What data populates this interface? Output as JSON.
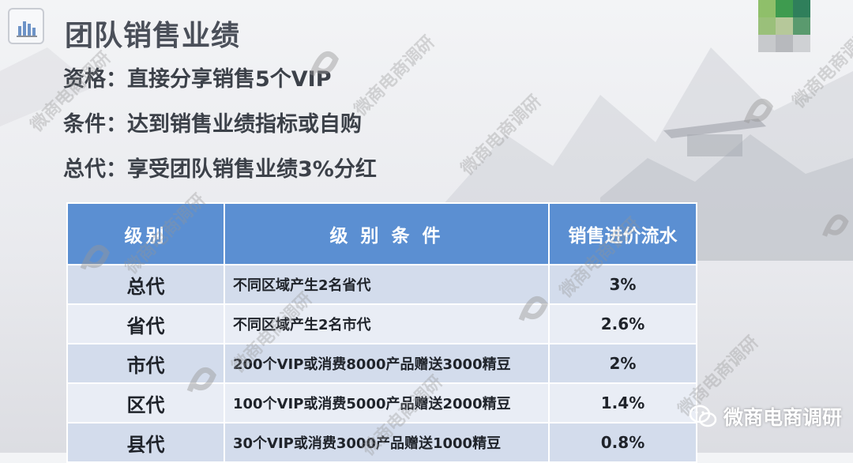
{
  "slide": {
    "title": "团队销售业绩",
    "lines": [
      "资格：直接分享销售5个VIP",
      "条件：达到销售业绩指标或自购",
      "总代：享受团队销售业绩3%分红"
    ]
  },
  "table": {
    "headers": [
      "级别",
      "级 别 条 件",
      "销售进价流水"
    ],
    "rows": [
      {
        "level": "总代",
        "condition": "不同区域产生2名省代",
        "rate": "3%"
      },
      {
        "level": "省代",
        "condition": "不同区域产生2名市代",
        "rate": "2.6%"
      },
      {
        "level": "市代",
        "condition": "200个VIP或消费8000产品赠送3000精豆",
        "rate": "2%"
      },
      {
        "level": "区代",
        "condition": "100个VIP或消费5000产品赠送2000精豆",
        "rate": "1.4%"
      },
      {
        "level": "县代",
        "condition": "30个VIP或消费3000产品赠送1000精豆",
        "rate": "0.8%"
      }
    ]
  },
  "watermark": {
    "text": "微商电商调研"
  },
  "brand": {
    "label": "微商电商调研",
    "icon": "wechat-icon"
  },
  "colors": {
    "header_blue": "#5b8fd2",
    "row_odd": "#d3dcec",
    "row_even": "#e9edf5"
  }
}
